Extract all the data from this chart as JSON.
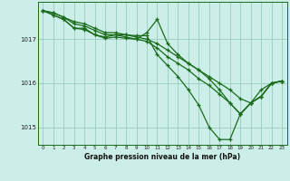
{
  "bg_color": "#cceee8",
  "line_color": "#1a6b1a",
  "grid_color": "#99ccbb",
  "xlim": [
    -0.5,
    23.5
  ],
  "ylim": [
    1014.6,
    1017.85
  ],
  "xlabel": "Graphe pression niveau de la mer (hPa)",
  "xticks": [
    0,
    1,
    2,
    3,
    4,
    5,
    6,
    7,
    8,
    9,
    10,
    11,
    12,
    13,
    14,
    15,
    16,
    17,
    18,
    19,
    20,
    21,
    22,
    23
  ],
  "yticks": [
    1015,
    1016,
    1017
  ],
  "line1": [
    [
      0,
      1017.65
    ],
    [
      1,
      1017.55
    ],
    [
      2,
      1017.45
    ],
    [
      3,
      1017.25
    ],
    [
      4,
      1017.22
    ],
    [
      5,
      1017.1
    ],
    [
      6,
      1017.02
    ],
    [
      7,
      1017.05
    ],
    [
      8,
      1017.02
    ],
    [
      9,
      1017.0
    ],
    [
      10,
      1017.15
    ],
    [
      11,
      1017.45
    ],
    [
      12,
      1016.9
    ],
    [
      13,
      1016.65
    ],
    [
      14,
      1016.45
    ],
    [
      15,
      1016.3
    ],
    [
      16,
      1016.1
    ],
    [
      17,
      1015.85
    ],
    [
      18,
      1015.55
    ],
    [
      19,
      1015.3
    ],
    [
      20,
      1015.55
    ],
    [
      21,
      1015.7
    ],
    [
      22,
      1016.0
    ],
    [
      23,
      1016.05
    ]
  ],
  "line2": [
    [
      0,
      1017.65
    ],
    [
      1,
      1017.55
    ],
    [
      2,
      1017.45
    ],
    [
      3,
      1017.25
    ],
    [
      4,
      1017.25
    ],
    [
      5,
      1017.1
    ],
    [
      6,
      1017.05
    ],
    [
      7,
      1017.1
    ],
    [
      8,
      1017.1
    ],
    [
      9,
      1017.08
    ],
    [
      10,
      1017.08
    ],
    [
      11,
      1016.65
    ],
    [
      12,
      1016.4
    ],
    [
      13,
      1016.15
    ],
    [
      14,
      1015.85
    ],
    [
      15,
      1015.5
    ],
    [
      16,
      1015.0
    ],
    [
      17,
      1014.72
    ],
    [
      18,
      1014.72
    ],
    [
      19,
      1015.3
    ],
    [
      20,
      1015.55
    ],
    [
      21,
      1015.7
    ],
    [
      22,
      1016.0
    ],
    [
      23,
      1016.05
    ]
  ],
  "line3": [
    [
      0,
      1017.65
    ],
    [
      1,
      1017.6
    ],
    [
      2,
      1017.5
    ],
    [
      3,
      1017.35
    ],
    [
      4,
      1017.3
    ],
    [
      5,
      1017.2
    ],
    [
      6,
      1017.1
    ],
    [
      7,
      1017.1
    ],
    [
      8,
      1017.05
    ],
    [
      9,
      1017.0
    ],
    [
      10,
      1016.95
    ],
    [
      11,
      1016.8
    ],
    [
      12,
      1016.6
    ],
    [
      13,
      1016.45
    ],
    [
      14,
      1016.3
    ],
    [
      15,
      1016.1
    ],
    [
      16,
      1015.95
    ],
    [
      17,
      1015.75
    ],
    [
      18,
      1015.55
    ],
    [
      19,
      1015.3
    ],
    [
      20,
      1015.55
    ],
    [
      21,
      1015.7
    ],
    [
      22,
      1016.0
    ],
    [
      23,
      1016.05
    ]
  ],
  "line4": [
    [
      0,
      1017.65
    ],
    [
      1,
      1017.6
    ],
    [
      2,
      1017.5
    ],
    [
      3,
      1017.4
    ],
    [
      4,
      1017.35
    ],
    [
      5,
      1017.25
    ],
    [
      6,
      1017.15
    ],
    [
      7,
      1017.15
    ],
    [
      8,
      1017.1
    ],
    [
      9,
      1017.05
    ],
    [
      10,
      1017.0
    ],
    [
      11,
      1016.9
    ],
    [
      12,
      1016.75
    ],
    [
      13,
      1016.6
    ],
    [
      14,
      1016.45
    ],
    [
      15,
      1016.3
    ],
    [
      16,
      1016.15
    ],
    [
      17,
      1016.0
    ],
    [
      18,
      1015.85
    ],
    [
      19,
      1015.65
    ],
    [
      20,
      1015.55
    ],
    [
      21,
      1015.85
    ],
    [
      22,
      1016.0
    ],
    [
      23,
      1016.05
    ]
  ]
}
